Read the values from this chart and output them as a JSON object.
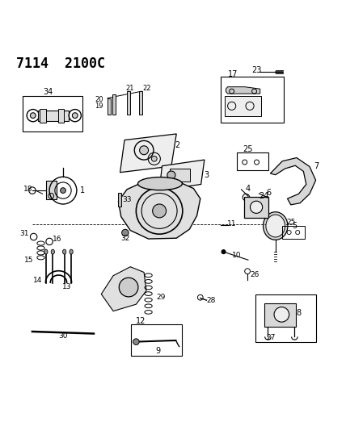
{
  "title": "7114  2100C",
  "bg_color": "#ffffff",
  "line_color": "#000000",
  "fig_width": 4.28,
  "fig_height": 5.33,
  "dpi": 100
}
